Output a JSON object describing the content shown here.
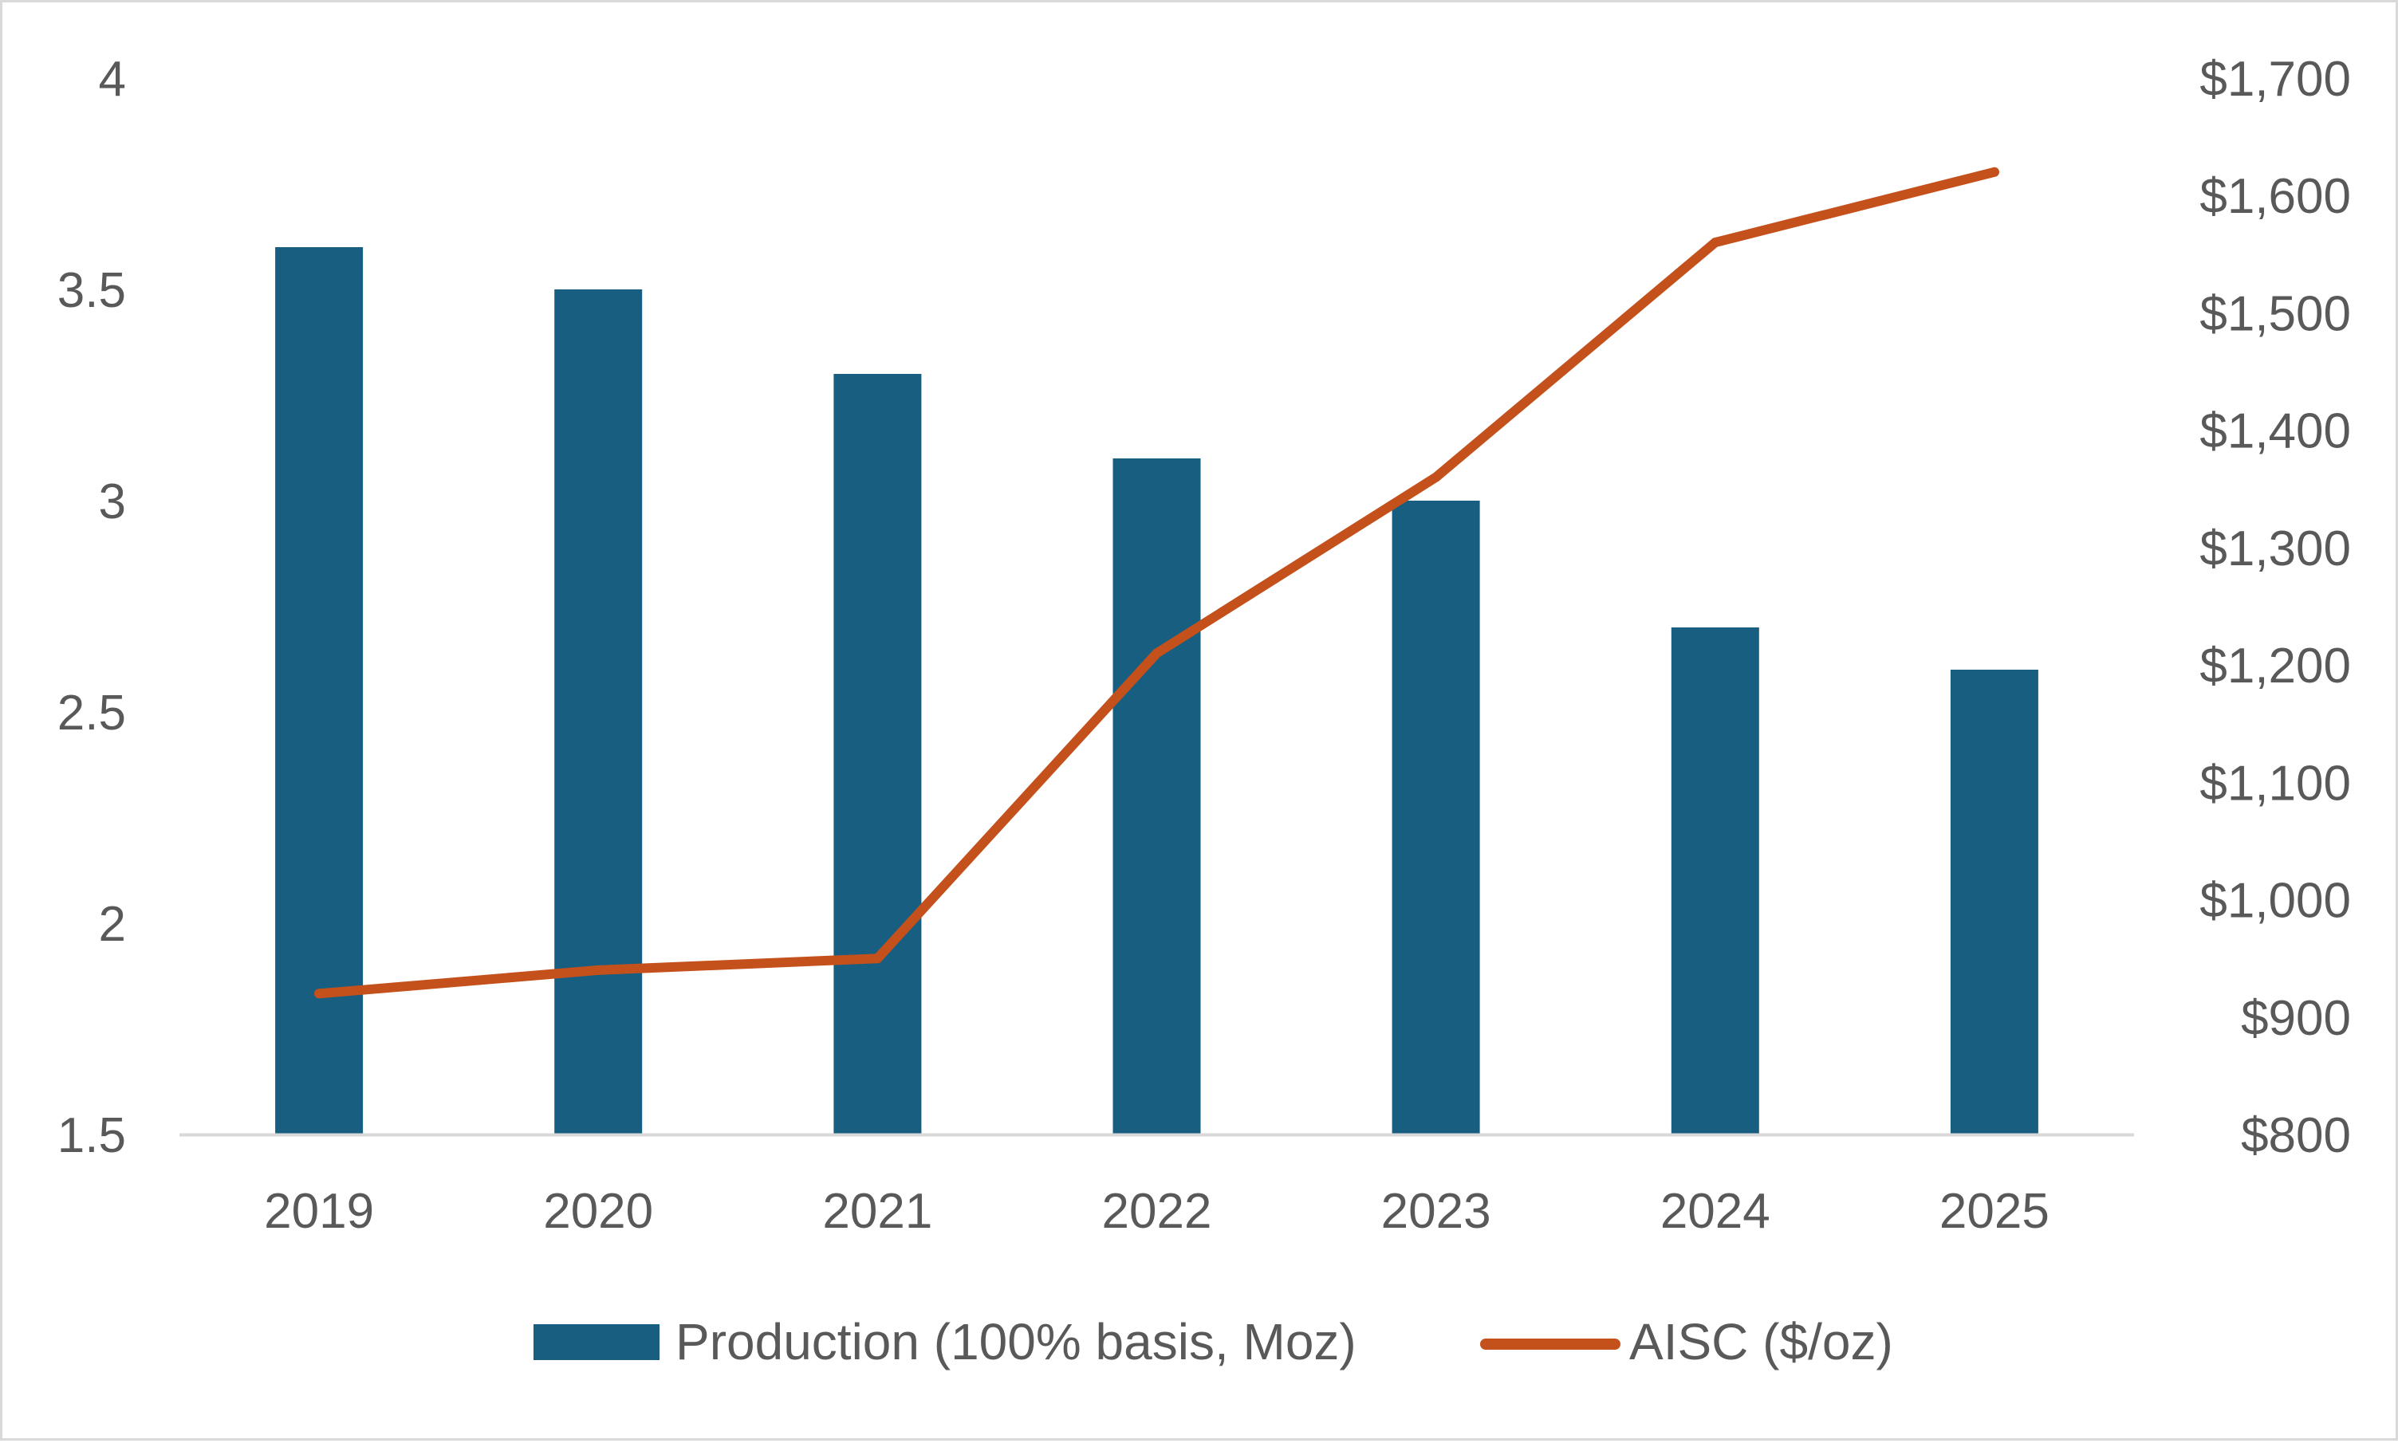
{
  "chart_data": {
    "type": "bar",
    "categories": [
      "2019",
      "2020",
      "2021",
      "2022",
      "2023",
      "2024",
      "2025"
    ],
    "series": [
      {
        "name": "Production (100% basis, Moz)",
        "type": "bar",
        "axis": "left",
        "color": "#175e81",
        "values": [
          3.6,
          3.5,
          3.3,
          3.1,
          3.0,
          2.7,
          2.6
        ]
      },
      {
        "name": "AISC ($/oz)",
        "type": "line",
        "axis": "right",
        "color": "#c4501c",
        "values": [
          920,
          940,
          950,
          1210,
          1360,
          1560,
          1620
        ]
      }
    ],
    "y_left": {
      "ylim": [
        1.5,
        4
      ],
      "ticks": [
        1.5,
        2,
        2.5,
        3,
        3.5,
        4
      ],
      "tick_labels": [
        "1.5",
        "2",
        "2.5",
        "3",
        "3.5",
        "4"
      ]
    },
    "y_right": {
      "ylim": [
        800,
        1700
      ],
      "ticks": [
        800,
        900,
        1000,
        1100,
        1200,
        1300,
        1400,
        1500,
        1600,
        1700
      ],
      "tick_labels": [
        "$800",
        "$900",
        "$1,000",
        "$1,100",
        "$1,200",
        "$1,300",
        "$1,400",
        "$1,500",
        "$1,600",
        "$1,700"
      ]
    },
    "grid": false,
    "legend_position": "bottom",
    "axis_color": "#d9d9d9",
    "text_color": "#595959"
  }
}
